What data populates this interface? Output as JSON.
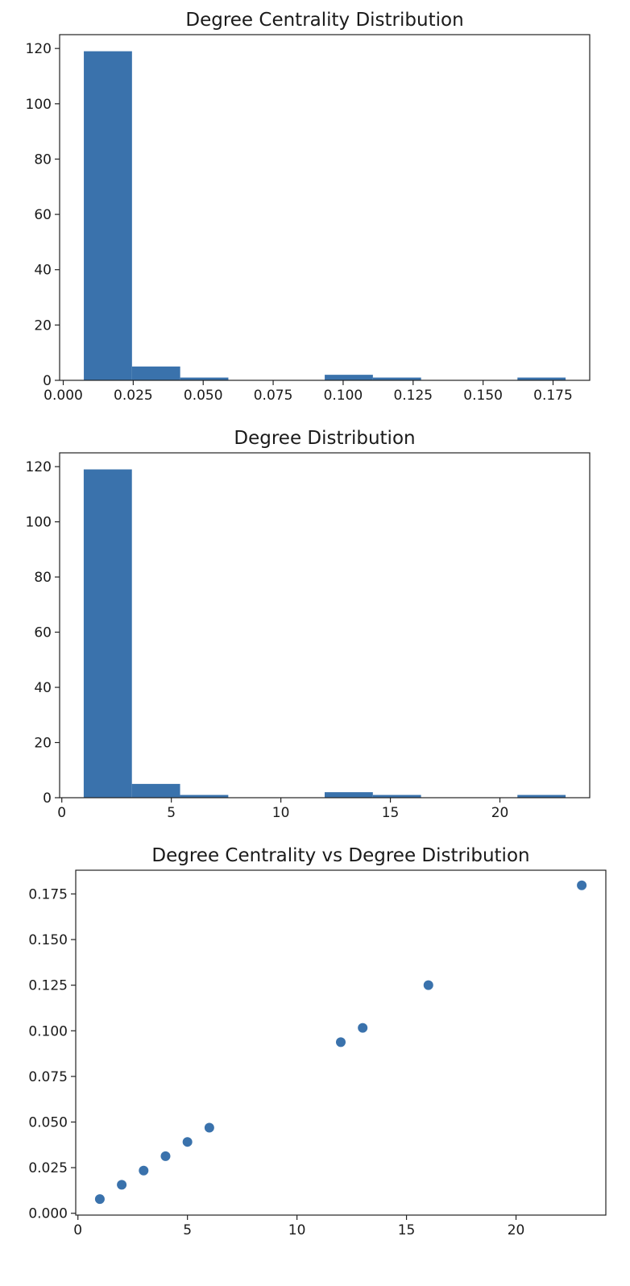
{
  "chart_data": [
    {
      "type": "bar",
      "title": "Degree Centrality Distribution",
      "xlabel": "",
      "ylabel": "",
      "bin_edges": [
        0.00735,
        0.02456,
        0.04178,
        0.05899,
        0.07621,
        0.09342,
        0.11063,
        0.12785,
        0.14506,
        0.16228,
        0.17949
      ],
      "values": [
        119,
        5,
        1,
        0,
        0,
        2,
        1,
        0,
        0,
        1
      ],
      "xlim": [
        -0.0013,
        0.1881
      ],
      "ylim": [
        0,
        125
      ],
      "xticks": [
        0.0,
        0.025,
        0.05,
        0.075,
        0.1,
        0.125,
        0.15,
        0.175
      ],
      "xtick_labels": [
        "0.000",
        "0.025",
        "0.050",
        "0.075",
        "0.100",
        "0.125",
        "0.150",
        "0.175"
      ],
      "yticks": [
        0,
        20,
        40,
        60,
        80,
        100,
        120
      ],
      "ytick_labels": [
        "0",
        "20",
        "40",
        "60",
        "80",
        "100",
        "120"
      ],
      "color": "#3a72ac",
      "grid": false
    },
    {
      "type": "bar",
      "title": "Degree Distribution",
      "xlabel": "",
      "ylabel": "",
      "bin_edges": [
        1,
        3.2,
        5.4,
        7.6,
        9.8,
        12,
        14.2,
        16.4,
        18.6,
        20.8,
        23
      ],
      "values": [
        119,
        5,
        1,
        0,
        0,
        2,
        1,
        0,
        0,
        1
      ],
      "xlim": [
        -0.1,
        24.1
      ],
      "ylim": [
        0,
        125
      ],
      "xticks": [
        0,
        5,
        10,
        15,
        20
      ],
      "xtick_labels": [
        "0",
        "5",
        "10",
        "15",
        "20"
      ],
      "yticks": [
        0,
        20,
        40,
        60,
        80,
        100,
        120
      ],
      "ytick_labels": [
        "0",
        "20",
        "40",
        "60",
        "80",
        "100",
        "120"
      ],
      "color": "#3a72ac",
      "grid": false
    },
    {
      "type": "scatter",
      "title": "Degree Centrality vs Degree Distribution",
      "xlabel": "",
      "ylabel": "",
      "x": [
        1,
        2,
        3,
        4,
        5,
        6,
        12,
        13,
        16,
        23
      ],
      "y": [
        0.0078,
        0.0156,
        0.0234,
        0.0313,
        0.0391,
        0.0469,
        0.0938,
        0.1016,
        0.125,
        0.1797
      ],
      "xlim": [
        -0.1,
        24.1
      ],
      "ylim": [
        -0.001,
        0.188
      ],
      "xticks": [
        0,
        5,
        10,
        15,
        20
      ],
      "xtick_labels": [
        "0",
        "5",
        "10",
        "15",
        "20"
      ],
      "yticks": [
        0.0,
        0.025,
        0.05,
        0.075,
        0.1,
        0.125,
        0.15,
        0.175
      ],
      "ytick_labels": [
        "0.000",
        "0.025",
        "0.050",
        "0.075",
        "0.100",
        "0.125",
        "0.150",
        "0.175"
      ],
      "color": "#3a72ac",
      "grid": false
    }
  ]
}
